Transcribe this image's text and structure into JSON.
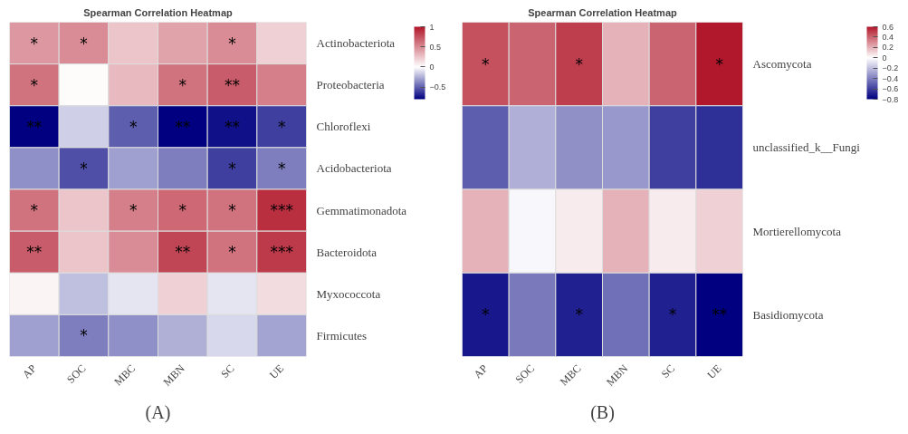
{
  "chart_data": [
    {
      "type": "heatmap",
      "title": "Spearman Correlation Heatmap",
      "categories": [
        "AP",
        "SOC",
        "MBC",
        "MBN",
        "SC",
        "UE"
      ],
      "y_categories": [
        "Actinobacteriota",
        "Proteobacteria",
        "Chloroflexi",
        "Acidobacteriota",
        "Gemmatimonadota",
        "Bacteroidota",
        "Myxococcota",
        "Firmicutes"
      ],
      "cells": [
        [
          0.45,
          0.5,
          0.25,
          0.4,
          0.5,
          0.2
        ],
        [
          0.6,
          0.02,
          0.3,
          0.6,
          0.7,
          0.55
        ],
        [
          -0.8,
          -0.15,
          -0.5,
          -0.8,
          -0.75,
          -0.6
        ],
        [
          -0.35,
          -0.55,
          -0.3,
          -0.4,
          -0.6,
          -0.4
        ],
        [
          0.6,
          0.25,
          0.55,
          0.65,
          0.6,
          0.9
        ],
        [
          0.7,
          0.25,
          0.5,
          0.8,
          0.6,
          0.85
        ],
        [
          0.05,
          -0.2,
          -0.08,
          0.2,
          -0.08,
          0.15
        ],
        [
          -0.3,
          -0.4,
          -0.35,
          -0.25,
          -0.12,
          -0.28
        ]
      ],
      "cell_labels": [
        [
          "*",
          "*",
          null,
          null,
          "*",
          null
        ],
        [
          "*",
          null,
          null,
          "*",
          "**",
          null
        ],
        [
          "**",
          null,
          "*",
          "**",
          "**",
          "*"
        ],
        [
          null,
          "*",
          null,
          null,
          "*",
          "*"
        ],
        [
          "*",
          null,
          "*",
          "*",
          "*",
          "***"
        ],
        [
          "**",
          null,
          null,
          "**",
          "*",
          "***"
        ],
        [
          null,
          null,
          null,
          null,
          null,
          null
        ],
        [
          null,
          "*",
          null,
          null,
          null,
          null
        ]
      ],
      "clim": [
        -0.8,
        1
      ],
      "cticks": [
        -0.5,
        0,
        0.5,
        1
      ],
      "annotations": [
        "(A)"
      ]
    },
    {
      "type": "heatmap",
      "title": "Spearman Correlation Heatmap",
      "categories": [
        "AP",
        "SOC",
        "MBC",
        "MBN",
        "SC",
        "UE"
      ],
      "y_categories": [
        "Ascomycota",
        "unclassified_k__Fungi",
        "Mortierellomycota",
        "Basidiomycota"
      ],
      "cells": [
        [
          0.45,
          0.4,
          0.5,
          0.2,
          0.4,
          0.6
        ],
        [
          -0.5,
          -0.25,
          -0.35,
          -0.32,
          -0.6,
          -0.65
        ],
        [
          0.2,
          -0.02,
          0.05,
          0.2,
          0.05,
          0.12
        ],
        [
          -0.72,
          -0.42,
          -0.7,
          -0.45,
          -0.7,
          -0.8
        ]
      ],
      "cell_labels": [
        [
          "*",
          null,
          "*",
          null,
          null,
          "*"
        ],
        [
          null,
          null,
          null,
          null,
          null,
          null
        ],
        [
          null,
          null,
          null,
          null,
          null,
          null
        ],
        [
          "*",
          null,
          "*",
          null,
          "*",
          "**"
        ]
      ],
      "clim": [
        -0.8,
        0.6
      ],
      "cticks": [
        -0.8,
        -0.6,
        -0.4,
        -0.2,
        0,
        0.2,
        0.4,
        0.6
      ],
      "annotations": [
        "(B)"
      ]
    }
  ]
}
